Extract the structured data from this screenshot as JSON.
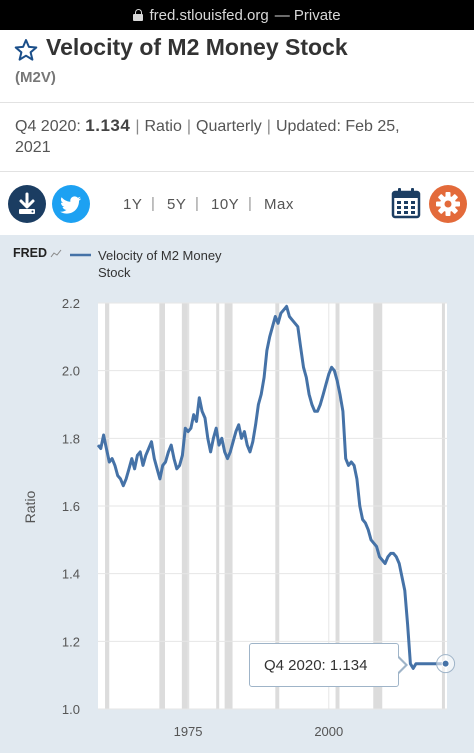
{
  "browser": {
    "url_host": "fred.stlouisfed.org",
    "mode_label": "— Private"
  },
  "series": {
    "title": "Velocity of M2 Money Stock",
    "id": "(M2V)",
    "period": "Q4 2020:",
    "latest_value": "1.134",
    "units": "Ratio",
    "frequency": "Quarterly",
    "updated_label": "Updated:",
    "updated_date_part1": "Feb 25,",
    "updated_date_part2": "2021"
  },
  "toolbar": {
    "download_icon": "download-icon",
    "twitter_icon": "twitter-icon",
    "ranges": [
      "1Y",
      "5Y",
      "10Y",
      "Max"
    ],
    "calendar_icon": "calendar-icon",
    "settings_icon": "gear-icon",
    "settings_color": "#e36a3a",
    "download_color": "#1b3d62",
    "twitter_color": "#1da1f2"
  },
  "chart_header": {
    "brand": "FRED",
    "legend_line1": "Velocity of M2 Money",
    "legend_line2": "Stock"
  },
  "tooltip": {
    "label": "Q4 2020:",
    "value": "1.134"
  },
  "chart_data": {
    "type": "line",
    "title": "",
    "ylabel": "Ratio",
    "xlabel": "",
    "xlim": [
      1959,
      2021
    ],
    "ylim": [
      1.0,
      2.2
    ],
    "y_ticks": [
      "2.2",
      "2.0",
      "1.8",
      "1.6",
      "1.4",
      "1.2",
      "1.0"
    ],
    "x_tick_labels": [
      "1975",
      "2000"
    ],
    "x_tick_values": [
      1975,
      2000
    ],
    "grid": true,
    "line_color": "#4572a7",
    "recessions": [
      [
        1960.25,
        1961.0
      ],
      [
        1969.9,
        1970.9
      ],
      [
        1973.9,
        1975.2
      ],
      [
        1980.0,
        1980.5
      ],
      [
        1981.5,
        1982.9
      ],
      [
        1990.5,
        1991.2
      ],
      [
        2001.2,
        2001.9
      ],
      [
        2007.9,
        2009.5
      ],
      [
        2020.1,
        2020.4
      ]
    ],
    "series": [
      {
        "name": "Velocity of M2 Money Stock",
        "x": [
          1959.0,
          1959.5,
          1960.0,
          1960.5,
          1961.0,
          1961.5,
          1962.0,
          1962.5,
          1963.0,
          1963.5,
          1964.0,
          1964.5,
          1965.0,
          1965.5,
          1966.0,
          1966.5,
          1967.0,
          1967.5,
          1968.0,
          1968.5,
          1969.0,
          1969.5,
          1970.0,
          1970.5,
          1971.0,
          1971.5,
          1972.0,
          1972.5,
          1973.0,
          1973.5,
          1974.0,
          1974.5,
          1975.0,
          1975.5,
          1976.0,
          1976.5,
          1977.0,
          1977.5,
          1978.0,
          1978.5,
          1979.0,
          1979.5,
          1980.0,
          1980.5,
          1981.0,
          1981.5,
          1982.0,
          1982.5,
          1983.0,
          1983.5,
          1984.0,
          1984.5,
          1985.0,
          1985.5,
          1986.0,
          1986.5,
          1987.0,
          1987.5,
          1988.0,
          1988.5,
          1989.0,
          1989.5,
          1990.0,
          1990.5,
          1991.0,
          1991.5,
          1992.0,
          1992.5,
          1993.0,
          1993.5,
          1994.0,
          1994.5,
          1995.0,
          1995.5,
          1996.0,
          1996.5,
          1997.0,
          1997.5,
          1998.0,
          1998.5,
          1999.0,
          1999.5,
          2000.0,
          2000.5,
          2001.0,
          2001.5,
          2002.0,
          2002.5,
          2003.0,
          2003.5,
          2004.0,
          2004.5,
          2005.0,
          2005.5,
          2006.0,
          2006.5,
          2007.0,
          2007.5,
          2008.0,
          2008.5,
          2009.0,
          2009.5,
          2010.0,
          2010.5,
          2011.0,
          2011.5,
          2012.0,
          2012.5,
          2013.0,
          2013.5,
          2014.0,
          2014.5,
          2015.0,
          2015.5,
          2016.0,
          2016.5,
          2017.0,
          2017.5,
          2018.0,
          2018.5,
          2019.0,
          2019.5,
          2020.0,
          2020.25,
          2020.5,
          2020.75
        ],
        "values": [
          1.78,
          1.77,
          1.81,
          1.77,
          1.73,
          1.74,
          1.72,
          1.69,
          1.68,
          1.66,
          1.68,
          1.71,
          1.74,
          1.71,
          1.75,
          1.76,
          1.72,
          1.75,
          1.77,
          1.79,
          1.74,
          1.71,
          1.68,
          1.72,
          1.73,
          1.76,
          1.78,
          1.74,
          1.71,
          1.72,
          1.75,
          1.83,
          1.82,
          1.83,
          1.87,
          1.85,
          1.92,
          1.88,
          1.86,
          1.8,
          1.76,
          1.8,
          1.83,
          1.78,
          1.8,
          1.76,
          1.74,
          1.76,
          1.79,
          1.82,
          1.84,
          1.8,
          1.82,
          1.78,
          1.76,
          1.79,
          1.84,
          1.9,
          1.93,
          1.98,
          2.06,
          2.1,
          2.13,
          2.16,
          2.14,
          2.17,
          2.18,
          2.19,
          2.16,
          2.15,
          2.14,
          2.13,
          2.07,
          2.01,
          1.98,
          1.93,
          1.9,
          1.88,
          1.88,
          1.9,
          1.93,
          1.96,
          1.99,
          2.01,
          2.0,
          1.97,
          1.93,
          1.88,
          1.74,
          1.72,
          1.73,
          1.72,
          1.68,
          1.6,
          1.56,
          1.55,
          1.53,
          1.5,
          1.49,
          1.48,
          1.45,
          1.44,
          1.43,
          1.45,
          1.46,
          1.46,
          1.45,
          1.43,
          1.39,
          1.35,
          1.25,
          1.134,
          1.12,
          1.134,
          1.134,
          1.134,
          1.134,
          1.134,
          1.134,
          1.134,
          1.134,
          1.134,
          1.134,
          1.134,
          1.134,
          1.134
        ]
      }
    ]
  }
}
